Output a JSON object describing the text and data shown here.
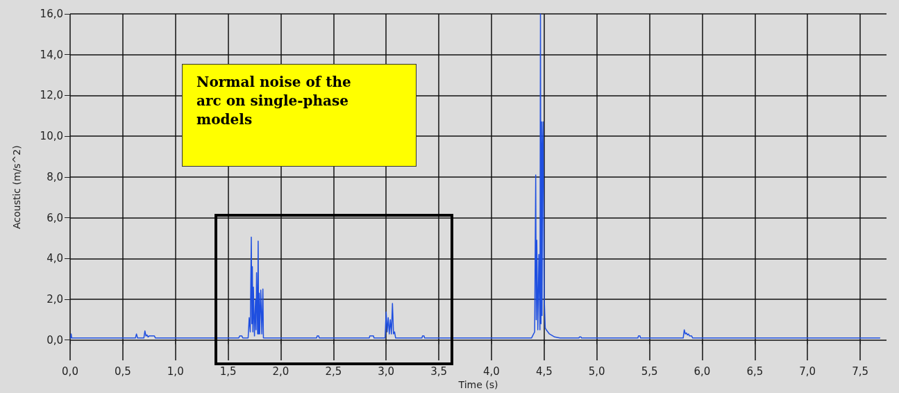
{
  "chart_data": {
    "type": "line",
    "xlabel": "Time (s)",
    "ylabel": "Acoustic (m/s^2)",
    "annotations": [
      "Normal noise of the arc on single-phase models"
    ],
    "series": [
      {
        "color": "#1f4fe0",
        "x": [
          0,
          0.005,
          0.01,
          0.015,
          0.5,
          0.51,
          0.62,
          0.63,
          0.64,
          0.7,
          0.71,
          0.72,
          0.73,
          0.74,
          0.75,
          0.8,
          0.81,
          1.6,
          1.61,
          1.63,
          1.64,
          1.69,
          1.7,
          1.71,
          1.72,
          1.725,
          1.73,
          1.735,
          1.74,
          1.75,
          1.76,
          1.765,
          1.77,
          1.78,
          1.785,
          1.79,
          1.795,
          1.8,
          1.81,
          1.82,
          1.83,
          1.835,
          1.84,
          1.85,
          2.34,
          2.345,
          2.36,
          2.365,
          2.84,
          2.845,
          2.88,
          2.885,
          2.99,
          3.0,
          3.01,
          3.02,
          3.03,
          3.04,
          3.05,
          3.06,
          3.07,
          3.08,
          3.09,
          3.1,
          3.34,
          3.345,
          3.36,
          3.365,
          4.38,
          4.4,
          4.41,
          4.42,
          4.425,
          4.43,
          4.44,
          4.45,
          4.46,
          4.465,
          4.47,
          4.475,
          4.48,
          4.485,
          4.49,
          4.5,
          4.51,
          4.52,
          4.55,
          4.6,
          4.65,
          4.83,
          4.835,
          4.85,
          4.855,
          5.39,
          5.395,
          5.41,
          5.415,
          5.82,
          5.83,
          5.84,
          5.85,
          5.86,
          5.87,
          5.88,
          5.9,
          5.91,
          7.69
        ],
        "values": [
          0.1,
          0.1,
          0.3,
          0.1,
          0.1,
          0.1,
          0.1,
          0.3,
          0.1,
          0.1,
          0.45,
          0.2,
          0.25,
          0.15,
          0.2,
          0.2,
          0.1,
          0.1,
          0.2,
          0.2,
          0.1,
          0.1,
          1.1,
          0.4,
          5.05,
          0.8,
          3.6,
          0.4,
          2.6,
          0.2,
          2.0,
          0.5,
          3.3,
          0.3,
          4.85,
          0.3,
          2.3,
          0.3,
          2.45,
          0.3,
          2.5,
          0.1,
          0.1,
          0.1,
          0.1,
          0.2,
          0.2,
          0.1,
          0.1,
          0.2,
          0.2,
          0.1,
          0.1,
          1.38,
          0.4,
          1.1,
          0.3,
          1.0,
          0.3,
          1.8,
          0.3,
          0.4,
          0.1,
          0.1,
          0.1,
          0.2,
          0.2,
          0.1,
          0.1,
          0.3,
          0.4,
          8.1,
          1.0,
          4.9,
          0.5,
          4.2,
          0.5,
          16.0,
          0.8,
          10.7,
          1.2,
          9.5,
          10.7,
          2.2,
          0.6,
          0.5,
          0.3,
          0.15,
          0.1,
          0.1,
          0.15,
          0.15,
          0.1,
          0.1,
          0.2,
          0.2,
          0.1,
          0.1,
          0.5,
          0.3,
          0.35,
          0.25,
          0.3,
          0.2,
          0.2,
          0.1,
          0.1
        ]
      }
    ],
    "xlim": [
      0,
      7.75
    ],
    "ylim": [
      -1,
      16
    ],
    "xticks": [
      {
        "value": 0,
        "label": "0,0"
      },
      {
        "value": 0.5,
        "label": "0,5"
      },
      {
        "value": 1,
        "label": "1,0"
      },
      {
        "value": 1.5,
        "label": "1,5"
      },
      {
        "value": 2,
        "label": "2,0"
      },
      {
        "value": 2.5,
        "label": "2,5"
      },
      {
        "value": 3,
        "label": "3,0"
      },
      {
        "value": 3.5,
        "label": "3,5"
      },
      {
        "value": 4,
        "label": "4,0"
      },
      {
        "value": 4.5,
        "label": "4,5"
      },
      {
        "value": 5,
        "label": "5,0"
      },
      {
        "value": 5.5,
        "label": "5,5"
      },
      {
        "value": 6,
        "label": "6,0"
      },
      {
        "value": 6.5,
        "label": "6,5"
      },
      {
        "value": 7,
        "label": "7,0"
      },
      {
        "value": 7.5,
        "label": "7,5"
      }
    ],
    "yticks": [
      {
        "value": 0,
        "label": "0,0"
      },
      {
        "value": 2,
        "label": "2,0"
      },
      {
        "value": 4,
        "label": "4,0"
      },
      {
        "value": 6,
        "label": "6,0"
      },
      {
        "value": 8,
        "label": "8,0"
      },
      {
        "value": 10,
        "label": "10,0"
      },
      {
        "value": 12,
        "label": "12,0"
      },
      {
        "value": 14,
        "label": "14,0"
      },
      {
        "value": 16,
        "label": "16,0"
      }
    ],
    "grid": true,
    "marker": "none",
    "line_style": "solid"
  }
}
